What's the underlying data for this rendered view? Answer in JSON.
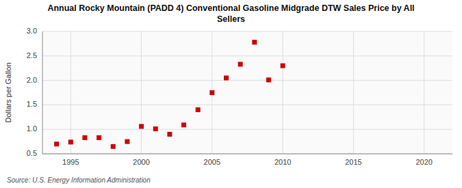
{
  "chart_data": {
    "type": "scatter",
    "title": "Annual Rocky Mountain (PADD 4) Conventional Gasoline Midgrade DTW Sales Price by All\nSellers",
    "y_label": "Dollars per Gallon",
    "source": "Source: U.S. Energy Information Administration",
    "x": [
      1994,
      1995,
      1996,
      1997,
      1998,
      1999,
      2000,
      2001,
      2002,
      2003,
      2004,
      2005,
      2006,
      2007,
      2008,
      2009,
      2010
    ],
    "values": [
      0.7,
      0.74,
      0.83,
      0.83,
      0.65,
      0.75,
      1.06,
      1.01,
      0.9,
      1.09,
      1.4,
      1.75,
      2.05,
      2.33,
      2.78,
      2.01,
      2.3
    ],
    "color": "#cc0000",
    "marker": "square",
    "xlim": [
      1993,
      2022
    ],
    "ylim": [
      0.5,
      3.0
    ],
    "xticks": [
      1995,
      2000,
      2005,
      2010,
      2015,
      2020
    ],
    "yticks": [
      0.5,
      {
        "value": 1.0,
        "label": "1.0"
      },
      1.5,
      {
        "value": 2.0,
        "label": "2.0"
      },
      2.5,
      {
        "value": 3.0,
        "label": "3.0"
      }
    ],
    "grid": true
  }
}
